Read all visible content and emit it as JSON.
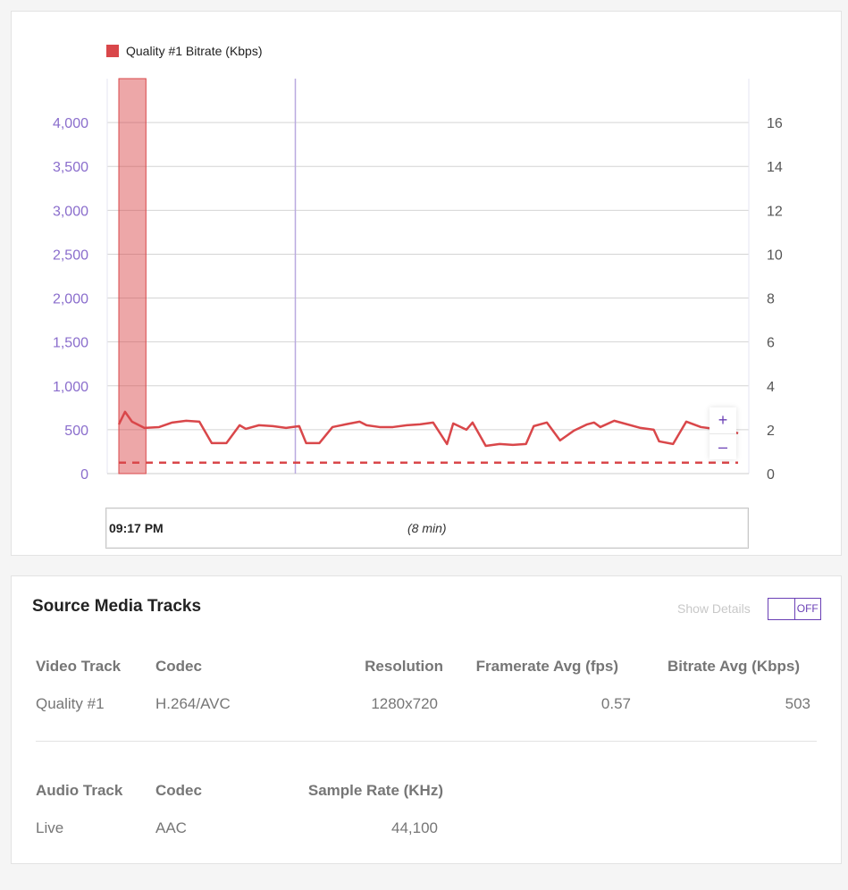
{
  "chart_data": {
    "type": "line",
    "legend": [
      {
        "label": "Quality #1 Bitrate (Kbps)",
        "color": "#d9474a"
      }
    ],
    "legend_position": "top-left",
    "left_axis": {
      "ticks": [
        "0",
        "500",
        "1,000",
        "1,500",
        "2,000",
        "2,500",
        "3,000",
        "3,500",
        "4,000"
      ],
      "tick_values": [
        0,
        500,
        1000,
        1500,
        2000,
        2500,
        3000,
        3500,
        4000
      ],
      "range": [
        0,
        4500
      ],
      "color": "#8a6dcc"
    },
    "right_axis": {
      "ticks": [
        "0",
        "2",
        "4",
        "6",
        "8",
        "10",
        "12",
        "14",
        "16"
      ],
      "tick_values": [
        0,
        2,
        4,
        6,
        8,
        10,
        12,
        14,
        16
      ],
      "range": [
        0,
        18
      ]
    },
    "x_range_min": [
      0,
      8
    ],
    "grid": true,
    "series": [
      {
        "name": "Quality #1 Bitrate (Kbps)",
        "axis": "left",
        "color": "#d9474a",
        "style": "solid",
        "x": [
          0,
          0.08,
          0.17,
          0.33,
          0.52,
          0.69,
          0.87,
          1.04,
          1.2,
          1.39,
          1.56,
          1.64,
          1.81,
          1.99,
          2.16,
          2.33,
          2.42,
          2.59,
          2.76,
          2.93,
          3.11,
          3.2,
          3.37,
          3.54,
          3.72,
          3.89,
          4.06,
          4.24,
          4.32,
          4.49,
          4.57,
          4.74,
          4.92,
          5.09,
          5.26,
          5.36,
          5.53,
          5.7,
          5.88,
          6.05,
          6.14,
          6.22,
          6.4,
          6.74,
          6.91,
          6.98,
          7.16,
          7.33,
          7.52,
          7.69,
          7.86,
          8
        ],
        "y": [
          561,
          704,
          592,
          520,
          530,
          582,
          602,
          592,
          347,
          347,
          551,
          510,
          551,
          541,
          520,
          541,
          347,
          347,
          530,
          561,
          592,
          551,
          530,
          530,
          551,
          561,
          582,
          337,
          571,
          500,
          582,
          316,
          337,
          327,
          337,
          541,
          582,
          378,
          490,
          561,
          582,
          530,
          602,
          520,
          500,
          367,
          337,
          592,
          530,
          510,
          500,
          459
        ]
      },
      {
        "name": "Framerate",
        "axis": "right",
        "color": "#d9474a",
        "style": "dashed",
        "x": [
          0,
          8
        ],
        "y": [
          0.5,
          0.5
        ]
      }
    ],
    "selection_band": [
      0,
      0.35
    ],
    "marker_x": 2.28,
    "marker_color": "#b9a9df"
  },
  "chart": {
    "zoom_in": "+",
    "zoom_out": "–",
    "time_start": "09:17 PM",
    "duration": "(8 min)"
  },
  "tracks": {
    "title": "Source Media Tracks",
    "show_details_label": "Show Details",
    "toggle_state": "OFF",
    "video": {
      "headers": [
        "Video Track",
        "Codec",
        "Resolution",
        "Framerate Avg (fps)",
        "Bitrate Avg (Kbps)"
      ],
      "row": [
        "Quality #1",
        "H.264/AVC",
        "1280x720",
        "0.57",
        "503"
      ]
    },
    "audio": {
      "headers": [
        "Audio Track",
        "Codec",
        "Sample Rate (KHz)"
      ],
      "row": [
        "Live",
        "AAC",
        "44,100"
      ]
    }
  }
}
